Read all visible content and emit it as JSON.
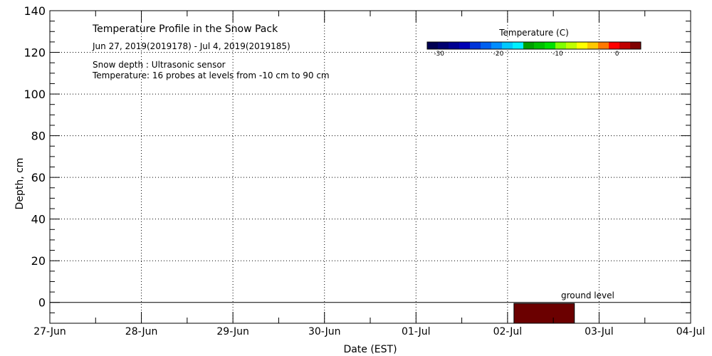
{
  "chart_data": {
    "type": "area",
    "title": "Temperature Profile in the Snow Pack",
    "date_range": "Jun 27, 2019(2019178) - Jul  4, 2019(2019185)",
    "snow_depth_note": "Snow depth : Ultrasonic sensor",
    "temperature_note": "Temperature: 16 probes at levels from -10 cm to 90 cm",
    "xlabel": "Date (EST)",
    "ylabel": "Depth, cm",
    "x_categories": [
      "27-Jun",
      "28-Jun",
      "29-Jun",
      "30-Jun",
      "01-Jul",
      "02-Jul",
      "03-Jul",
      "04-Jul"
    ],
    "xlim": [
      0,
      7
    ],
    "ylim": [
      -10,
      140
    ],
    "y_ticks": [
      0,
      20,
      40,
      60,
      80,
      100,
      120,
      140
    ],
    "y_minor_step": 5,
    "grid": true,
    "ground_level": 0,
    "ground_level_label": "ground level",
    "series": [
      {
        "x_start": 5.07,
        "x_end": 5.73,
        "y_bottom": -10,
        "y_top": -0.5,
        "temperature_c": 3,
        "color": "#6b0000"
      }
    ],
    "colorbar": {
      "title": "Temperature (C)",
      "min": -32,
      "max": 4,
      "tick_values": [
        -30,
        -20,
        -10,
        0
      ],
      "tick_labels": [
        "-30",
        "-20",
        "-10",
        "0"
      ],
      "colors": [
        "#000052",
        "#000070",
        "#000090",
        "#0000b4",
        "#0034d8",
        "#0060f0",
        "#008cff",
        "#00c8ff",
        "#00f0ff",
        "#00a000",
        "#00c000",
        "#00e000",
        "#80ff00",
        "#c0ff00",
        "#ffff00",
        "#ffc800",
        "#ff7800",
        "#ff0000",
        "#c00000",
        "#800000"
      ]
    }
  }
}
